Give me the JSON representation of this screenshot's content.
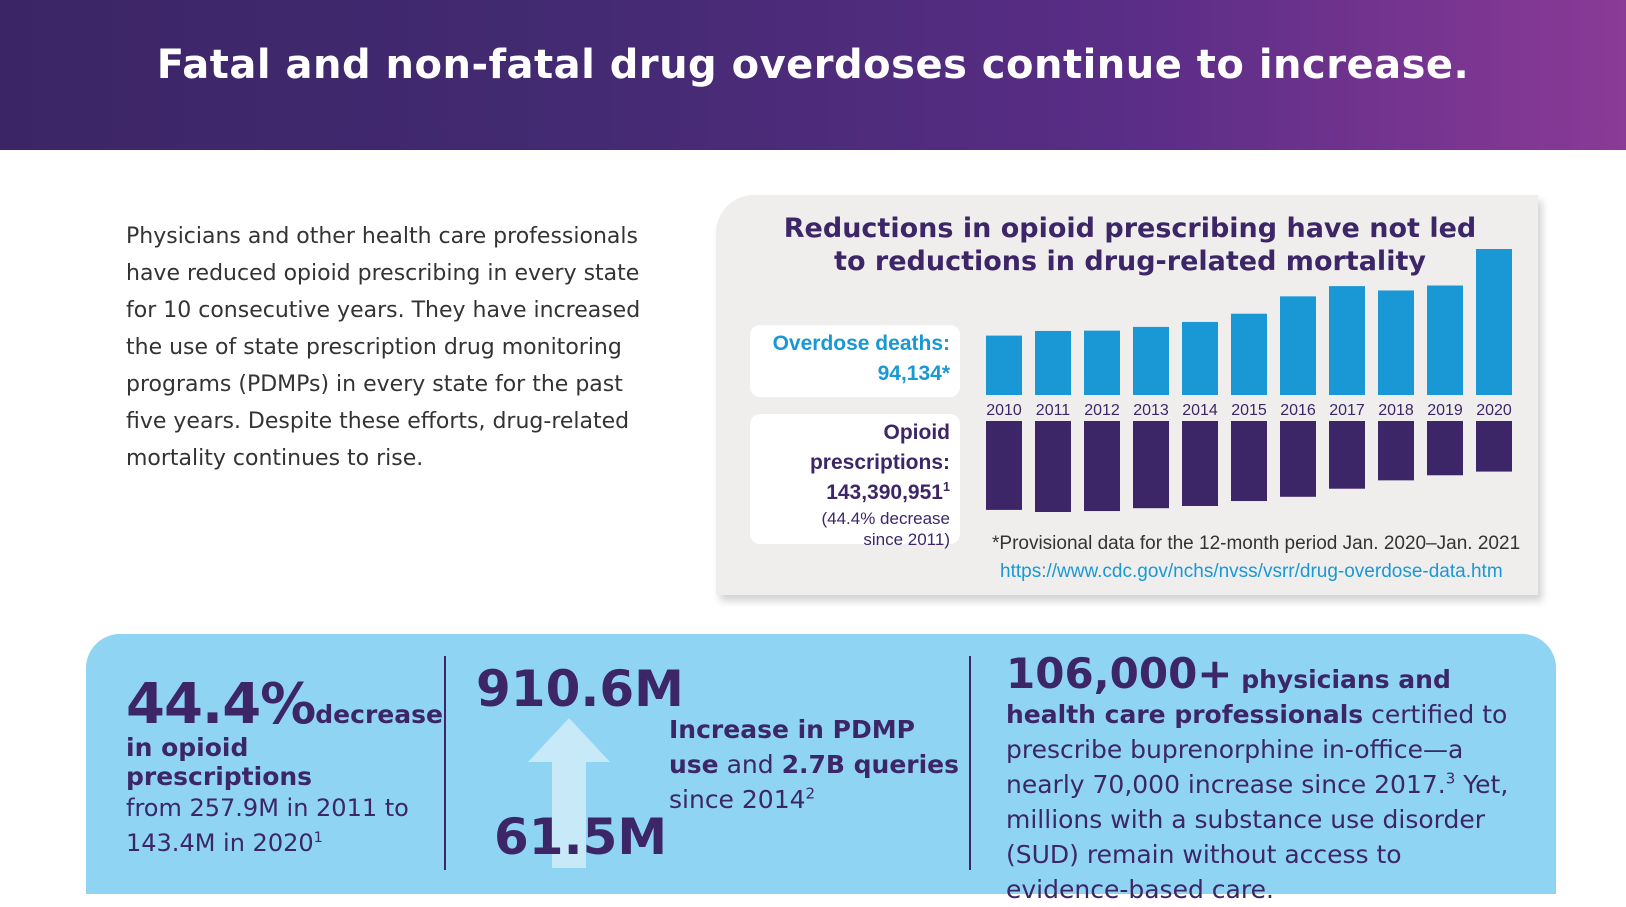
{
  "header": {
    "title": "Fatal and non-fatal drug overdoses continue to increase."
  },
  "intro": {
    "text": "Physicians and other health care professionals have reduced opioid prescribing in every state for 10 consecutive years. They have increased the use of state prescription drug monitoring programs (PDMPs) in every state for the past five years. Despite these efforts, drug-related mortality continues to rise."
  },
  "chart": {
    "title_line1": "Reductions in opioid prescribing have not led",
    "title_line2": "to reductions in drug-related mortality",
    "overdose_label": "Overdose deaths:",
    "overdose_value": "94,134*",
    "opioid_label": "Opioid prescriptions:",
    "opioid_value": "143,390,951",
    "opioid_sup": "1",
    "opioid_note_line1": "(44.4% decrease",
    "opioid_note_line2": "since 2011)",
    "footnote": "*Provisional data for the 12-month period Jan. 2020–Jan. 2021",
    "link": "https://www.cdc.gov/nchs/nvss/vsrr/drug-overdose-data.htm",
    "colors": {
      "overdose": "#1a98d5",
      "opioid": "#3d2668"
    }
  },
  "chart_data": {
    "type": "bar",
    "title": "Reductions in opioid prescribing have not led to reductions in drug-related mortality",
    "categories": [
      "2010",
      "2011",
      "2012",
      "2013",
      "2014",
      "2015",
      "2016",
      "2017",
      "2018",
      "2019",
      "2020"
    ],
    "series": [
      {
        "name": "Overdose deaths",
        "values": [
          38300,
          41300,
          41500,
          43900,
          47100,
          52400,
          63600,
          70200,
          67400,
          70600,
          94134
        ]
      },
      {
        "name": "Opioid prescriptions",
        "values": [
          252000000,
          257900000,
          255200000,
          247100000,
          240900000,
          226800000,
          214800000,
          191900000,
          168200000,
          153800000,
          143390951
        ]
      }
    ]
  },
  "stats": {
    "s1_big": "44.4%",
    "s1_lead": "decrease",
    "s1_line2": "in opioid prescriptions",
    "s1_rest": "from 257.9M in 2011 to 143.4M in 2020",
    "s1_sup": "1",
    "s2_top": "910.6M",
    "s2_bottom": "61.5M",
    "s2_bold1": "Increase in PDMP",
    "s2_bold2": "use",
    "s2_mid": " and ",
    "s2_bold3": "2.7B queries",
    "s2_rest": "since 2014",
    "s2_sup": "2",
    "s3_big": "106,000+",
    "s3_bold": " physicians and health care professionals",
    "s3_rest1": " certified to prescribe buprenorphine in-office—a nearly 70,000 increase since 2017.",
    "s3_sup": "3",
    "s3_rest2": " Yet, millions with a substance use disorder (SUD) remain without access to evidence-based care."
  }
}
